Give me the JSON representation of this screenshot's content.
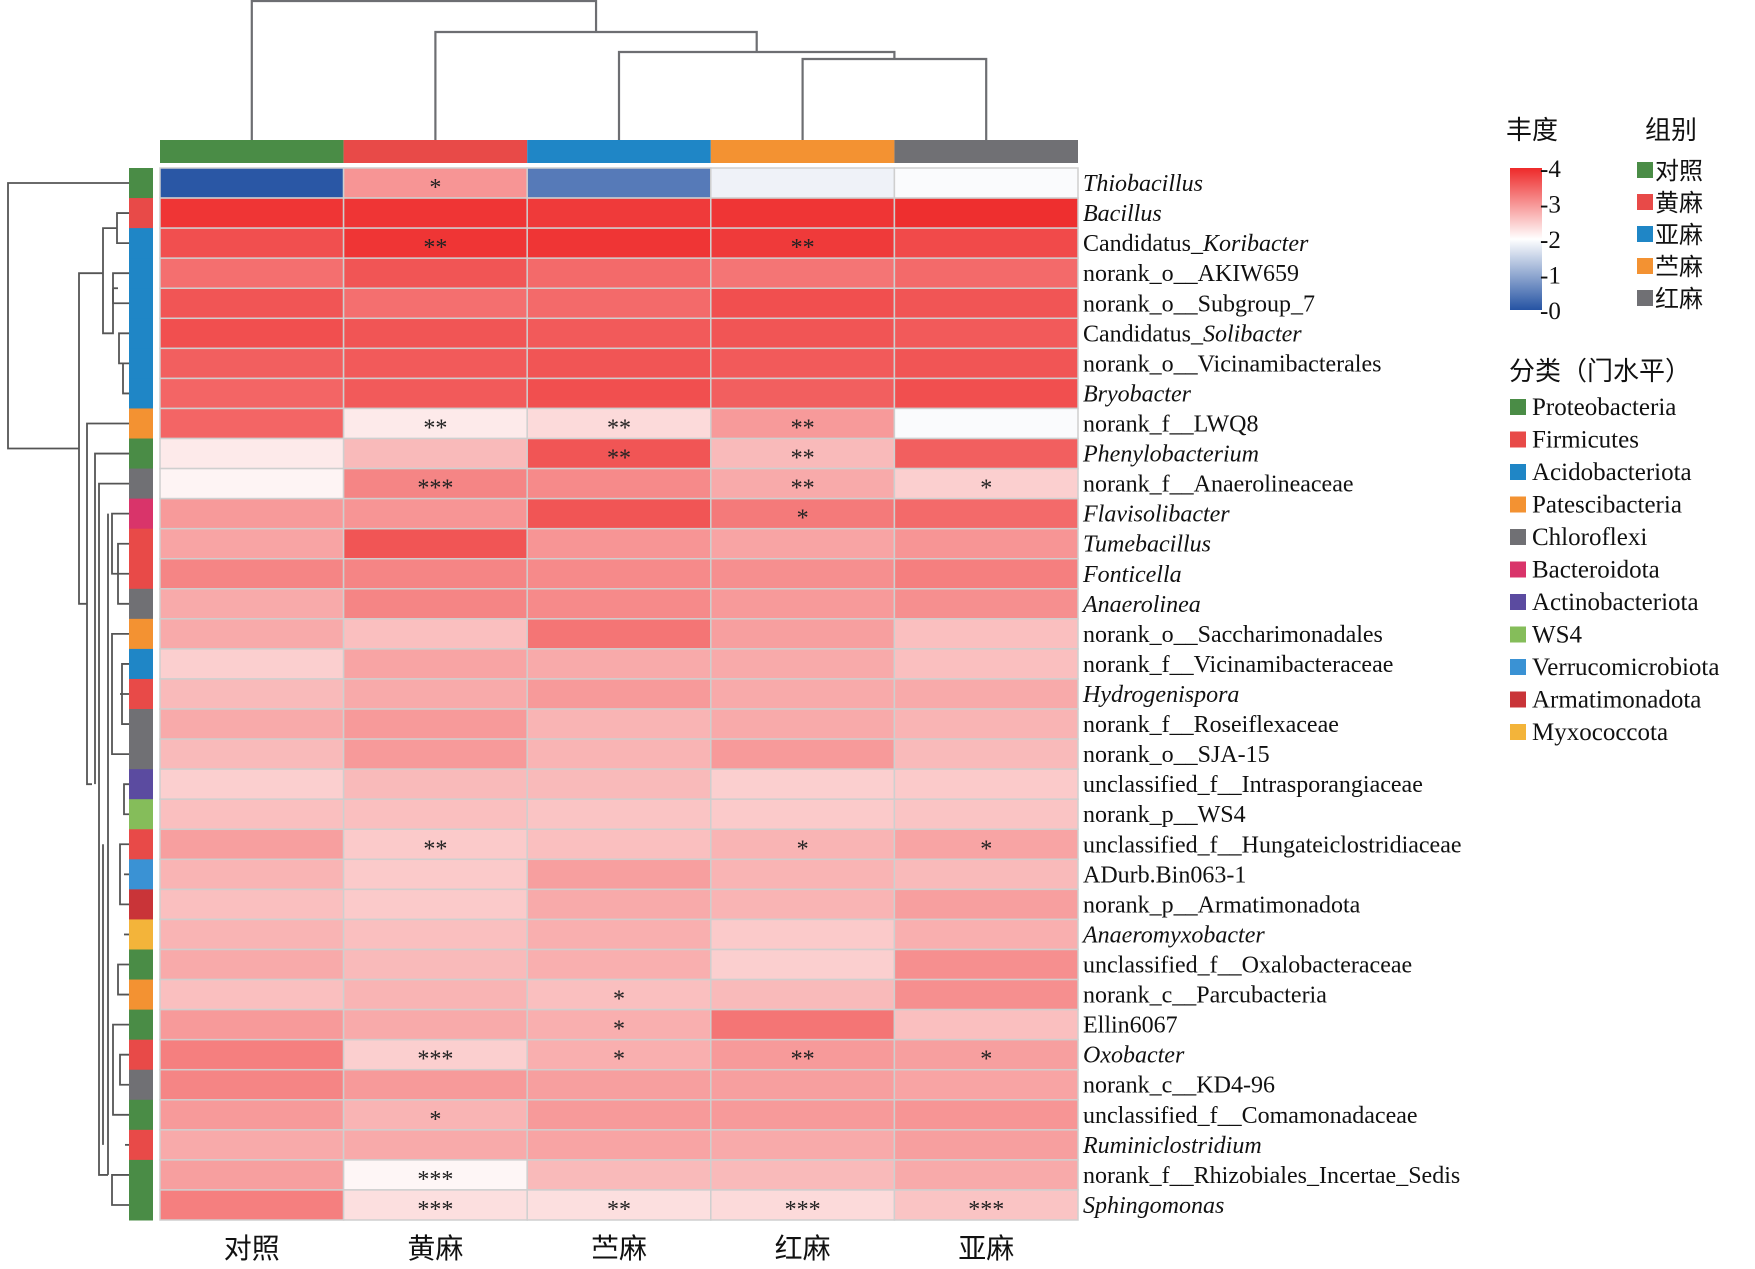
{
  "chart_data": {
    "type": "heatmap",
    "title": "",
    "columns": [
      "对照",
      "黄麻",
      "苎麻",
      "红麻",
      "亚麻"
    ],
    "column_groups": [
      "对照",
      "黄麻",
      "亚麻",
      "苎麻",
      "红麻"
    ],
    "colorbar": {
      "title": "丰度",
      "range": [
        0,
        4
      ],
      "ticks": [
        "-4",
        "-3",
        "-2",
        "-1",
        "-0"
      ],
      "tick_values": [
        4,
        3,
        2,
        1,
        0
      ],
      "low_color": "#2553a3",
      "mid_color": "#ffffff",
      "high_color": "#ee2a2a"
    },
    "group_legend": {
      "title": "组别",
      "items": [
        {
          "label": "对照",
          "color": "#4a8c46"
        },
        {
          "label": "黄麻",
          "color": "#e84a48"
        },
        {
          "label": "亚麻",
          "color": "#1f86c6"
        },
        {
          "label": "苎麻",
          "color": "#f39232"
        },
        {
          "label": "红麻",
          "color": "#707074"
        }
      ]
    },
    "phylum_legend": {
      "title": "分类（门水平）",
      "items": [
        {
          "label": "Proteobacteria",
          "color": "#4a8c46"
        },
        {
          "label": "Firmicutes",
          "color": "#e84a48"
        },
        {
          "label": "Acidobacteriota",
          "color": "#1f86c6"
        },
        {
          "label": "Patescibacteria",
          "color": "#f39232"
        },
        {
          "label": "Chloroflexi",
          "color": "#707074"
        },
        {
          "label": "Bacteroidota",
          "color": "#d9346a"
        },
        {
          "label": "Actinobacteriota",
          "color": "#5b4ba0"
        },
        {
          "label": "WS4",
          "color": "#85bd5a"
        },
        {
          "label": "Verrucomicrobiota",
          "color": "#3a92d4"
        },
        {
          "label": "Armatimonadota",
          "color": "#c93438"
        },
        {
          "label": "Myxococcota",
          "color": "#f3b43a"
        }
      ]
    },
    "column_colors": [
      "#4a8c46",
      "#e84a48",
      "#1f86c6",
      "#f39232",
      "#707074"
    ],
    "rows": [
      {
        "name": "Thiobacillus",
        "parts": [
          {
            "t": "Thiobacillus",
            "i": true
          }
        ],
        "phylum": "Proteobacteria",
        "values": [
          0.05,
          3.0,
          0.45,
          1.85,
          1.95
        ],
        "sig": [
          "",
          "*",
          "",
          "",
          ""
        ]
      },
      {
        "name": "Bacillus",
        "parts": [
          {
            "t": "Bacillus",
            "i": true
          }
        ],
        "phylum": "Firmicutes",
        "values": [
          3.9,
          3.9,
          3.85,
          3.9,
          3.95
        ],
        "sig": [
          "",
          "",
          "",
          "",
          ""
        ]
      },
      {
        "name": "Candidatus_Koribacter",
        "parts": [
          {
            "t": "Candidatus_",
            "i": false
          },
          {
            "t": "Koribacter",
            "i": true
          }
        ],
        "phylum": "Acidobacteriota",
        "values": [
          3.65,
          3.9,
          3.9,
          3.85,
          3.7
        ],
        "sig": [
          "",
          "**",
          "",
          "**",
          ""
        ]
      },
      {
        "name": "norank_o__AKIW659",
        "parts": [
          {
            "t": "norank_o__AKIW659",
            "i": false
          }
        ],
        "phylum": "Acidobacteriota",
        "values": [
          3.35,
          3.6,
          3.4,
          3.3,
          3.4
        ],
        "sig": [
          "",
          "",
          "",
          "",
          ""
        ]
      },
      {
        "name": "norank_o__Subgroup_7",
        "parts": [
          {
            "t": "norank_o__Subgroup_7",
            "i": false
          }
        ],
        "phylum": "Acidobacteriota",
        "values": [
          3.6,
          3.35,
          3.4,
          3.65,
          3.6
        ],
        "sig": [
          "",
          "",
          "",
          "",
          ""
        ]
      },
      {
        "name": "Candidatus_Solibacter",
        "parts": [
          {
            "t": "Candidatus_",
            "i": false
          },
          {
            "t": "Solibacter",
            "i": true
          }
        ],
        "phylum": "Acidobacteriota",
        "values": [
          3.65,
          3.6,
          3.55,
          3.6,
          3.55
        ],
        "sig": [
          "",
          "",
          "",
          "",
          ""
        ]
      },
      {
        "name": "norank_o__Vicinamibacterales",
        "parts": [
          {
            "t": "norank_o__Vicinamibacterales",
            "i": false
          }
        ],
        "phylum": "Acidobacteriota",
        "values": [
          3.5,
          3.55,
          3.6,
          3.55,
          3.6
        ],
        "sig": [
          "",
          "",
          "",
          "",
          ""
        ]
      },
      {
        "name": "Bryobacter",
        "parts": [
          {
            "t": "Bryobacter",
            "i": true
          }
        ],
        "phylum": "Acidobacteriota",
        "values": [
          3.45,
          3.55,
          3.65,
          3.5,
          3.65
        ],
        "sig": [
          "",
          "",
          "",
          "",
          ""
        ]
      },
      {
        "name": "norank_f__LWQ8",
        "parts": [
          {
            "t": "norank_f__LWQ8",
            "i": false
          }
        ],
        "phylum": "Patescibacteria",
        "values": [
          3.45,
          2.2,
          2.35,
          2.95,
          1.95
        ],
        "sig": [
          "",
          "**",
          "**",
          "**",
          ""
        ]
      },
      {
        "name": "Phenylobacterium",
        "parts": [
          {
            "t": "Phenylobacterium",
            "i": true
          }
        ],
        "phylum": "Proteobacteria",
        "values": [
          2.2,
          2.65,
          3.6,
          2.65,
          3.5
        ],
        "sig": [
          "",
          "",
          "**",
          "**",
          ""
        ]
      },
      {
        "name": "norank_f__Anaerolineaceae",
        "parts": [
          {
            "t": "norank_f__Anaerolineaceae",
            "i": false
          }
        ],
        "phylum": "Chloroflexi",
        "values": [
          2.1,
          3.15,
          3.1,
          2.8,
          2.45
        ],
        "sig": [
          "",
          "***",
          "",
          "**",
          "*"
        ]
      },
      {
        "name": "Flavisolibacter",
        "parts": [
          {
            "t": "Flavisolibacter",
            "i": true
          }
        ],
        "phylum": "Bacteroidota",
        "values": [
          2.95,
          3.0,
          3.6,
          3.25,
          3.4
        ],
        "sig": [
          "",
          "",
          "",
          "*",
          ""
        ]
      },
      {
        "name": "Tumebacillus",
        "parts": [
          {
            "t": "Tumebacillus",
            "i": true
          }
        ],
        "phylum": "Firmicutes",
        "values": [
          2.85,
          3.6,
          3.0,
          2.85,
          3.0
        ],
        "sig": [
          "",
          "",
          "",
          "",
          ""
        ]
      },
      {
        "name": "Fonticella",
        "parts": [
          {
            "t": "Fonticella",
            "i": true
          }
        ],
        "phylum": "Firmicutes",
        "values": [
          3.15,
          3.15,
          3.1,
          3.05,
          3.2
        ],
        "sig": [
          "",
          "",
          "",
          "",
          ""
        ]
      },
      {
        "name": "Anaerolinea",
        "parts": [
          {
            "t": "Anaerolinea",
            "i": true
          }
        ],
        "phylum": "Chloroflexi",
        "values": [
          2.8,
          3.15,
          3.1,
          2.95,
          3.05
        ],
        "sig": [
          "",
          "",
          "",
          "",
          ""
        ]
      },
      {
        "name": "norank_o__Saccharimonadales",
        "parts": [
          {
            "t": "norank_o__Saccharimonadales",
            "i": false
          }
        ],
        "phylum": "Patescibacteria",
        "values": [
          2.8,
          2.6,
          3.3,
          2.9,
          2.6
        ],
        "sig": [
          "",
          "",
          "",
          "",
          ""
        ]
      },
      {
        "name": "norank_f__Vicinamibacteraceae",
        "parts": [
          {
            "t": "norank_f__Vicinamibacteraceae",
            "i": false
          }
        ],
        "phylum": "Acidobacteriota",
        "values": [
          2.45,
          2.85,
          2.8,
          2.8,
          2.6
        ],
        "sig": [
          "",
          "",
          "",
          "",
          ""
        ]
      },
      {
        "name": "Hydrogenispora",
        "parts": [
          {
            "t": "Hydrogenispora",
            "i": true
          }
        ],
        "phylum": "Firmicutes",
        "values": [
          2.65,
          2.8,
          2.95,
          2.8,
          2.8
        ],
        "sig": [
          "",
          "",
          "",
          "",
          ""
        ]
      },
      {
        "name": "norank_f__Roseiflexaceae",
        "parts": [
          {
            "t": "norank_f__Roseiflexaceae",
            "i": false
          }
        ],
        "phylum": "Chloroflexi",
        "values": [
          2.8,
          2.95,
          2.7,
          2.8,
          2.7
        ],
        "sig": [
          "",
          "",
          "",
          "",
          ""
        ]
      },
      {
        "name": "norank_o__SJA-15",
        "parts": [
          {
            "t": "norank_o__SJA-15",
            "i": false
          }
        ],
        "phylum": "Chloroflexi",
        "values": [
          2.65,
          2.95,
          2.7,
          2.95,
          2.65
        ],
        "sig": [
          "",
          "",
          "",
          "",
          ""
        ]
      },
      {
        "name": "unclassified_f__Intrasporangiaceae",
        "parts": [
          {
            "t": "unclassified_f__Intrasporangiaceae",
            "i": false
          }
        ],
        "phylum": "Actinobacteriota",
        "values": [
          2.45,
          2.65,
          2.65,
          2.45,
          2.5
        ],
        "sig": [
          "",
          "",
          "",
          "",
          ""
        ]
      },
      {
        "name": "norank_p__WS4",
        "parts": [
          {
            "t": "norank_p__WS4",
            "i": false
          }
        ],
        "phylum": "WS4",
        "values": [
          2.6,
          2.6,
          2.55,
          2.5,
          2.55
        ],
        "sig": [
          "",
          "",
          "",
          "",
          ""
        ]
      },
      {
        "name": "unclassified_f__Hungateiclostridiaceae",
        "parts": [
          {
            "t": "unclassified_f__Hungateiclostridiaceae",
            "i": false
          }
        ],
        "phylum": "Firmicutes",
        "values": [
          2.9,
          2.5,
          2.6,
          2.7,
          2.85
        ],
        "sig": [
          "",
          "**",
          "",
          "*",
          "*"
        ]
      },
      {
        "name": "ADurb.Bin063-1",
        "parts": [
          {
            "t": "ADurb.Bin063-1",
            "i": false
          }
        ],
        "phylum": "Verrucomicrobiota",
        "values": [
          2.7,
          2.5,
          2.9,
          2.7,
          2.65
        ],
        "sig": [
          "",
          "",
          "",
          "",
          ""
        ]
      },
      {
        "name": "norank_p__Armatimonadota",
        "parts": [
          {
            "t": "norank_p__Armatimonadota",
            "i": false
          }
        ],
        "phylum": "Armatimonadota",
        "values": [
          2.6,
          2.5,
          2.8,
          2.7,
          2.9
        ],
        "sig": [
          "",
          "",
          "",
          "",
          ""
        ]
      },
      {
        "name": "Anaeromyxobacter",
        "parts": [
          {
            "t": "Anaeromyxobacter",
            "i": true
          }
        ],
        "phylum": "Myxococcota",
        "values": [
          2.7,
          2.6,
          2.75,
          2.5,
          2.75
        ],
        "sig": [
          "",
          "",
          "",
          "",
          ""
        ]
      },
      {
        "name": "unclassified_f__Oxalobacteraceae",
        "parts": [
          {
            "t": "unclassified_f__Oxalobacteraceae",
            "i": false
          }
        ],
        "phylum": "Proteobacteria",
        "values": [
          2.8,
          2.65,
          2.75,
          2.45,
          3.05
        ],
        "sig": [
          "",
          "",
          "",
          "",
          ""
        ]
      },
      {
        "name": "norank_c__Parcubacteria",
        "parts": [
          {
            "t": "norank_c__Parcubacteria",
            "i": false
          }
        ],
        "phylum": "Patescibacteria",
        "values": [
          2.6,
          2.7,
          2.6,
          2.65,
          3.05
        ],
        "sig": [
          "",
          "",
          "*",
          "",
          ""
        ]
      },
      {
        "name": "Ellin6067",
        "parts": [
          {
            "t": "Ellin6067",
            "i": false
          }
        ],
        "phylum": "Proteobacteria",
        "values": [
          2.95,
          2.8,
          2.75,
          3.3,
          2.6
        ],
        "sig": [
          "",
          "",
          "*",
          "",
          ""
        ]
      },
      {
        "name": "Oxobacter",
        "parts": [
          {
            "t": "Oxobacter",
            "i": true
          }
        ],
        "phylum": "Firmicutes",
        "values": [
          3.2,
          2.45,
          2.75,
          2.95,
          2.9
        ],
        "sig": [
          "",
          "***",
          "*",
          "**",
          "*"
        ]
      },
      {
        "name": "norank_c__KD4-96",
        "parts": [
          {
            "t": "norank_c__KD4-96",
            "i": false
          }
        ],
        "phylum": "Chloroflexi",
        "values": [
          3.15,
          2.95,
          2.9,
          2.9,
          2.85
        ],
        "sig": [
          "",
          "",
          "",
          "",
          ""
        ]
      },
      {
        "name": "unclassified_f__Comamonadaceae",
        "parts": [
          {
            "t": "unclassified_f__Comamonadaceae",
            "i": false
          }
        ],
        "phylum": "Proteobacteria",
        "values": [
          2.95,
          2.7,
          2.95,
          2.95,
          3.0
        ],
        "sig": [
          "",
          "*",
          "",
          "",
          ""
        ]
      },
      {
        "name": "Ruminiclostridium",
        "parts": [
          {
            "t": "Ruminiclostridium",
            "i": true
          }
        ],
        "phylum": "Firmicutes",
        "values": [
          2.8,
          2.8,
          2.85,
          2.8,
          2.9
        ],
        "sig": [
          "",
          "",
          "",
          "",
          ""
        ]
      },
      {
        "name": "norank_f__Rhizobiales_Incertae_Sedis",
        "parts": [
          {
            "t": "norank_f__Rhizobiales_Incertae_Sedis",
            "i": false
          }
        ],
        "phylum": "Proteobacteria",
        "values": [
          2.9,
          2.08,
          2.65,
          2.65,
          2.8
        ],
        "sig": [
          "",
          "***",
          "",
          "",
          ""
        ]
      },
      {
        "name": "Sphingomonas",
        "parts": [
          {
            "t": "Sphingomonas",
            "i": true
          }
        ],
        "phylum": "Proteobacteria",
        "values": [
          3.2,
          2.3,
          2.3,
          2.35,
          2.55
        ],
        "sig": [
          "",
          "***",
          "**",
          "***",
          "***"
        ]
      }
    ]
  }
}
